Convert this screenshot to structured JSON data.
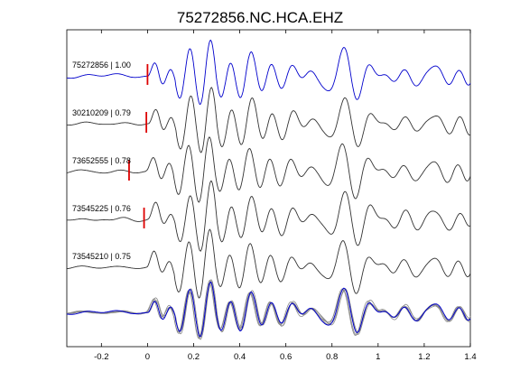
{
  "chart_data": {
    "type": "line",
    "title": "75272856.NC.HCA.EHZ",
    "xlabel": "",
    "ylabel": "",
    "xlim": [
      -0.35,
      1.4
    ],
    "xticks": [
      -0.2,
      0,
      0.2,
      0.4,
      0.6,
      0.8,
      1,
      1.2,
      1.4
    ],
    "xtick_labels": [
      "-0.2",
      "0",
      "0.2",
      "0.4",
      "0.6",
      "0.8",
      "1",
      "1.2",
      "1.4"
    ],
    "grid": false,
    "colors": {
      "master": "#0000cc",
      "trace": "#333333",
      "overlay": "#888888",
      "pick": "#dd0000",
      "axes": "#000000"
    },
    "series": [
      {
        "name": "75272856 | 1.00",
        "pick": 0.0,
        "color": "master",
        "seed": 11,
        "offset": 0.0
      },
      {
        "name": "30210209 | 0.79",
        "pick": -0.005,
        "color": "trace",
        "seed": 23,
        "offset": 0.004
      },
      {
        "name": "73652555 | 0.78",
        "pick": -0.08,
        "color": "trace",
        "seed": 37,
        "offset": -0.006
      },
      {
        "name": "73545225 | 0.76",
        "pick": -0.015,
        "color": "trace",
        "seed": 41,
        "offset": 0.003
      },
      {
        "name": "73545210 | 0.75",
        "pick": null,
        "color": "trace",
        "seed": 53,
        "offset": -0.004
      }
    ]
  }
}
